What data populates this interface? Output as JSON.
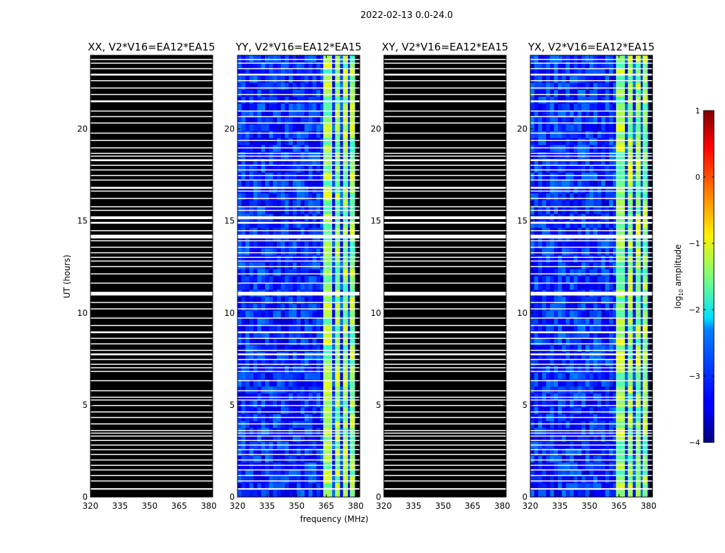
{
  "chart_data": {
    "type": "heatmap",
    "suptitle": "2022-02-13 0.0-24.0",
    "xlabel": "frequency (MHz)",
    "ylabel": "UT (hours)",
    "xlim": [
      320,
      382
    ],
    "ylim": [
      0,
      24
    ],
    "xticks": [
      320,
      335,
      350,
      365,
      380
    ],
    "yticks": [
      0,
      5,
      10,
      15,
      20
    ],
    "colorbar": {
      "label": "log10 amplitude",
      "label_base": "log",
      "label_sub": "10",
      "label_rest": " amplitude",
      "range": [
        -4,
        1
      ],
      "ticks": [
        1,
        0,
        -1,
        -2,
        -3,
        -4
      ],
      "tick_labels": [
        "1",
        "0",
        "−1",
        "−2",
        "−3",
        "−4"
      ],
      "colormap": "jet"
    },
    "flagged_color": "#ffffff",
    "masked_color": "#000000",
    "flagged_ut_bands": [
      [
        0.4,
        0.48
      ],
      [
        0.85,
        0.9
      ],
      [
        1.15,
        1.2
      ],
      [
        1.45,
        1.5
      ],
      [
        1.7,
        1.75
      ],
      [
        2.0,
        2.04
      ],
      [
        2.3,
        2.34
      ],
      [
        2.55,
        2.6
      ],
      [
        2.8,
        2.85
      ],
      [
        3.05,
        3.1
      ],
      [
        3.3,
        3.34
      ],
      [
        3.45,
        3.5
      ],
      [
        3.6,
        3.64
      ],
      [
        3.95,
        4.0
      ],
      [
        4.3,
        4.35
      ],
      [
        4.6,
        4.65
      ],
      [
        4.95,
        5.0
      ],
      [
        5.25,
        5.3
      ],
      [
        5.4,
        5.45
      ],
      [
        5.75,
        5.8
      ],
      [
        6.3,
        6.35
      ],
      [
        6.8,
        6.85
      ],
      [
        7.0,
        7.05
      ],
      [
        7.2,
        7.24
      ],
      [
        7.45,
        7.5
      ],
      [
        7.7,
        7.8
      ],
      [
        7.95,
        8.0
      ],
      [
        8.3,
        8.35
      ],
      [
        8.6,
        8.65
      ],
      [
        8.9,
        9.0
      ],
      [
        9.3,
        9.35
      ],
      [
        9.7,
        9.75
      ],
      [
        10.2,
        10.25
      ],
      [
        10.55,
        10.6
      ],
      [
        10.95,
        11.15
      ],
      [
        11.6,
        11.65
      ],
      [
        12.1,
        12.15
      ],
      [
        12.5,
        12.55
      ],
      [
        12.8,
        12.85
      ],
      [
        13.0,
        13.05
      ],
      [
        13.25,
        13.3
      ],
      [
        13.55,
        13.6
      ],
      [
        13.9,
        13.95
      ],
      [
        14.05,
        14.25
      ],
      [
        14.45,
        14.5
      ],
      [
        14.85,
        14.95
      ],
      [
        15.1,
        15.25
      ],
      [
        15.55,
        15.6
      ],
      [
        15.75,
        15.8
      ],
      [
        16.2,
        16.25
      ],
      [
        16.6,
        16.65
      ],
      [
        16.75,
        16.85
      ],
      [
        17.2,
        17.25
      ],
      [
        17.45,
        17.5
      ],
      [
        17.75,
        17.8
      ],
      [
        18.0,
        18.05
      ],
      [
        18.25,
        18.35
      ],
      [
        18.5,
        18.55
      ],
      [
        18.65,
        18.7
      ],
      [
        18.95,
        19.0
      ],
      [
        19.35,
        19.4
      ],
      [
        19.75,
        19.8
      ],
      [
        20.3,
        20.35
      ],
      [
        20.65,
        20.7
      ],
      [
        20.95,
        21.0
      ],
      [
        21.45,
        21.55
      ],
      [
        21.85,
        21.9
      ],
      [
        22.2,
        22.25
      ],
      [
        22.6,
        22.65
      ],
      [
        22.9,
        23.0
      ],
      [
        23.25,
        23.3
      ],
      [
        23.55,
        23.6
      ],
      [
        23.75,
        23.8
      ]
    ],
    "rfi_freq_bands": [
      [
        363.5,
        368
      ],
      [
        369.5,
        372
      ],
      [
        373.5,
        376
      ],
      [
        377,
        379.5
      ]
    ],
    "data_freq_range": [
      320,
      380
    ],
    "panels": [
      {
        "title": "XX, V2*V16=EA12*EA15",
        "polarization": "XX",
        "baseline": "V2*V16=EA12*EA15",
        "status": "masked"
      },
      {
        "title": "YY, V2*V16=EA12*EA15",
        "polarization": "YY",
        "baseline": "V2*V16=EA12*EA15",
        "status": "data",
        "background_log_amp": -3.2,
        "rfi_log_amp": -1.4
      },
      {
        "title": "XY, V2*V16=EA12*EA15",
        "polarization": "XY",
        "baseline": "V2*V16=EA12*EA15",
        "status": "masked"
      },
      {
        "title": "YX, V2*V16=EA12*EA15",
        "polarization": "YX",
        "baseline": "V2*V16=EA12*EA15",
        "status": "data",
        "background_log_amp": -3.2,
        "rfi_log_amp": -1.4
      }
    ]
  }
}
